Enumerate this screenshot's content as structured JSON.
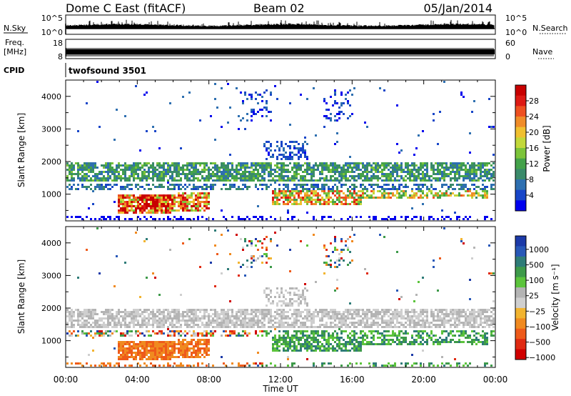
{
  "header": {
    "station": "Dome C East (fitACF)",
    "beam": "Beam 02",
    "date": "05/Jan/2014"
  },
  "top_panels": {
    "nsky": {
      "label": "N.Sky",
      "ticks": [
        "10^5",
        "10^0"
      ]
    },
    "nsearch": {
      "label": "N.Search",
      "ticks": [
        "10^5",
        "10^0"
      ]
    },
    "freq": {
      "label_line1": "Freq.",
      "label_line2": "[MHz]",
      "ticks_left": [
        "18",
        "8"
      ]
    },
    "nave": {
      "label": "Nave",
      "ticks_right": [
        "60",
        "0"
      ]
    },
    "cpid": {
      "label": "CPID",
      "program": "twofsound 3501"
    }
  },
  "chart_data": [
    {
      "type": "heatmap",
      "name": "power",
      "ylabel": "Slant Range [km]",
      "xlabel": "",
      "xlim": [
        0,
        24
      ],
      "ylim": [
        180,
        4500
      ],
      "x_ticks": [
        "00:00",
        "04:00",
        "08:00",
        "12:00",
        "16:00",
        "20:00",
        "00:00"
      ],
      "x_tick_values": [
        0,
        4,
        8,
        12,
        16,
        20,
        24
      ],
      "y_ticks": [
        "1000",
        "2000",
        "3000",
        "4000"
      ],
      "y_tick_values": [
        1000,
        2000,
        3000,
        4000
      ],
      "colorbar": {
        "label": "Power [dB]",
        "range": [
          0,
          32
        ],
        "ticks": [
          "4",
          "8",
          "12",
          "16",
          "20",
          "24",
          "28"
        ],
        "tick_values": [
          4,
          8,
          12,
          16,
          20,
          24,
          28
        ],
        "colors": [
          "#0000ee",
          "#1846c8",
          "#2e6fb0",
          "#3a8a6a",
          "#44a24a",
          "#7cc43a",
          "#c2d83a",
          "#f0c030",
          "#f08c28",
          "#ee5020",
          "#dd1a14",
          "#c80000"
        ]
      }
    },
    {
      "type": "heatmap",
      "name": "velocity",
      "ylabel": "Slant Range [km]",
      "xlabel": "Time UT",
      "xlim": [
        0,
        24
      ],
      "ylim": [
        180,
        4500
      ],
      "x_ticks": [
        "00:00",
        "04:00",
        "08:00",
        "12:00",
        "16:00",
        "20:00",
        "00:00"
      ],
      "x_tick_values": [
        0,
        4,
        8,
        12,
        16,
        20,
        24
      ],
      "y_ticks": [
        "1000",
        "2000",
        "3000",
        "4000"
      ],
      "y_tick_values": [
        1000,
        2000,
        3000,
        4000
      ],
      "colorbar": {
        "label": "Velocity [m s⁻¹]",
        "ticks": [
          "1000",
          "500",
          "100",
          "25",
          "−25",
          "−100",
          "−500",
          "−1000"
        ],
        "colors": [
          "#1c3aa8",
          "#2858b8",
          "#2f7c78",
          "#3e9a4a",
          "#5cc43c",
          "#b4b4b4",
          "#cfcfcf",
          "#f2b430",
          "#f08a20",
          "#ee5a1a",
          "#e02a12",
          "#d00000"
        ]
      }
    }
  ]
}
